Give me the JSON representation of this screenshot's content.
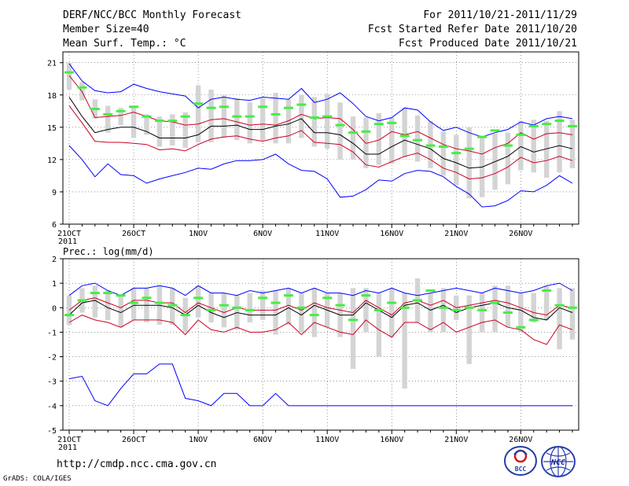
{
  "header": {
    "title": "DERF/NCC/BCC Monthly Forecast",
    "member_size": "Member Size=40",
    "variable": "Mean Surf. Temp.: °C",
    "period": "For 2011/10/21-2011/11/29",
    "start_date": "Fcst Started Refer Date 2011/10/20",
    "produced_date": "Fcst Produced Date 2011/10/21"
  },
  "footer": {
    "url": "http://cmdp.ncc.cma.gov.cn",
    "credit": "GrADS: COLA/IGES"
  },
  "logos": [
    {
      "name": "bcc-logo",
      "text": "BCC"
    },
    {
      "name": "ncc-logo",
      "text": "NCC"
    }
  ],
  "colors": {
    "envelope": "#0000ff",
    "spread": "#cc0022",
    "mean": "#000000",
    "ensemble_box": "#d4d4d4",
    "observation": "#44ee44"
  },
  "chart_data": [
    {
      "type": "line",
      "title": "Mean Surf. Temp.: °C",
      "x_tick_labels": [
        "21OCT",
        "26OCT",
        "1NOV",
        "6NOV",
        "11NOV",
        "16NOV",
        "21NOV",
        "26NOV"
      ],
      "x_tick_days": [
        1,
        6,
        11,
        16,
        21,
        26,
        31,
        36
      ],
      "year_label": "2011",
      "x_range": [
        1,
        40
      ],
      "ylim": [
        6,
        22
      ],
      "y_ticks": [
        6,
        9,
        12,
        15,
        18,
        21
      ],
      "grid": true,
      "series": [
        {
          "name": "max",
          "color": "#0000ff",
          "values": [
            20.9,
            19.3,
            18.4,
            18.2,
            18.3,
            19.0,
            18.6,
            18.3,
            18.1,
            17.9,
            16.8,
            17.6,
            17.8,
            17.6,
            17.5,
            17.8,
            17.7,
            17.6,
            18.6,
            17.3,
            17.6,
            18.2,
            17.2,
            16.0,
            15.6,
            15.9,
            16.8,
            16.6,
            15.5,
            14.7,
            15.0,
            14.5,
            14.1,
            14.5,
            14.8,
            15.5,
            15.2,
            15.8,
            16.0,
            15.8
          ]
        },
        {
          "name": "upper",
          "color": "#cc0022",
          "values": [
            19.8,
            18.3,
            15.9,
            16.0,
            16.1,
            16.4,
            16.0,
            15.6,
            15.5,
            15.2,
            15.3,
            15.7,
            15.8,
            15.5,
            15.2,
            15.3,
            15.2,
            15.6,
            16.2,
            15.8,
            15.9,
            15.8,
            14.8,
            13.5,
            13.8,
            14.6,
            14.3,
            14.6,
            14.0,
            13.4,
            13.0,
            12.8,
            12.5,
            13.1,
            13.5,
            14.5,
            13.9,
            14.4,
            14.5,
            14.3
          ]
        },
        {
          "name": "mean",
          "color": "#000000",
          "values": [
            17.8,
            16.0,
            14.5,
            14.8,
            15.0,
            15.0,
            14.6,
            14.0,
            14.0,
            14.0,
            14.3,
            15.1,
            15.1,
            15.2,
            14.8,
            14.8,
            15.1,
            15.3,
            15.8,
            14.5,
            14.5,
            14.3,
            13.5,
            12.5,
            12.5,
            13.2,
            13.8,
            13.4,
            13.0,
            12.1,
            11.7,
            11.2,
            11.3,
            11.8,
            12.3,
            13.2,
            12.7,
            13.0,
            13.3,
            13.0
          ]
        },
        {
          "name": "lower",
          "color": "#cc0022",
          "values": [
            17.0,
            15.4,
            13.7,
            13.6,
            13.6,
            13.5,
            13.4,
            12.9,
            13.0,
            12.8,
            13.4,
            13.9,
            14.1,
            14.2,
            13.9,
            13.7,
            14.0,
            14.2,
            14.7,
            13.6,
            13.5,
            13.4,
            12.7,
            11.5,
            11.3,
            11.8,
            12.3,
            12.6,
            12.0,
            11.2,
            10.8,
            10.2,
            10.3,
            10.7,
            11.3,
            12.2,
            11.7,
            11.9,
            12.3,
            11.9
          ]
        },
        {
          "name": "min",
          "color": "#0000ff",
          "values": [
            13.3,
            12.0,
            10.4,
            11.6,
            10.6,
            10.5,
            9.8,
            10.2,
            10.5,
            10.8,
            11.2,
            11.1,
            11.6,
            11.9,
            11.9,
            12.0,
            12.5,
            11.6,
            11.0,
            10.9,
            10.2,
            8.5,
            8.6,
            9.2,
            10.1,
            10.0,
            10.7,
            11.0,
            10.9,
            10.4,
            9.5,
            8.8,
            7.6,
            7.7,
            8.2,
            9.1,
            9.0,
            9.6,
            10.5,
            9.8
          ]
        },
        {
          "name": "observation",
          "color": "#44ee44",
          "values": [
            20.1,
            18.7,
            16.7,
            16.2,
            16.5,
            16.9,
            16.0,
            15.6,
            15.6,
            16.0,
            17.2,
            16.8,
            16.9,
            16.0,
            16.0,
            16.9,
            16.2,
            16.8,
            17.1,
            15.9,
            16.0,
            15.2,
            14.5,
            14.6,
            15.3,
            15.4,
            14.2,
            13.8,
            13.3,
            13.2,
            12.6,
            13.0,
            14.1,
            14.7,
            13.3,
            14.3,
            15.1,
            15.3,
            15.6,
            15.1
          ]
        }
      ],
      "box_values": [
        [
          18.5,
          21.0
        ],
        [
          17.5,
          19.2
        ],
        [
          15.8,
          17.6
        ],
        [
          14.5,
          17.0
        ],
        [
          15.2,
          16.8
        ],
        [
          14.0,
          16.9
        ],
        [
          14.3,
          16.2
        ],
        [
          13.2,
          16.0
        ],
        [
          13.3,
          16.2
        ],
        [
          13.1,
          16.4
        ],
        [
          13.6,
          18.9
        ],
        [
          13.6,
          18.5
        ],
        [
          14.0,
          18.0
        ],
        [
          13.8,
          17.7
        ],
        [
          13.5,
          17.3
        ],
        [
          13.8,
          17.7
        ],
        [
          13.5,
          18.2
        ],
        [
          13.5,
          17.6
        ],
        [
          14.0,
          18.0
        ],
        [
          13.2,
          17.8
        ],
        [
          13.0,
          18.1
        ],
        [
          12.0,
          17.3
        ],
        [
          12.0,
          16.0
        ],
        [
          11.2,
          15.9
        ],
        [
          11.5,
          16.3
        ],
        [
          11.6,
          15.9
        ],
        [
          12.2,
          16.8
        ],
        [
          11.8,
          16.1
        ],
        [
          11.2,
          15.6
        ],
        [
          10.5,
          14.6
        ],
        [
          9.6,
          14.3
        ],
        [
          8.4,
          15.0
        ],
        [
          8.5,
          14.2
        ],
        [
          9.2,
          14.4
        ],
        [
          9.7,
          14.5
        ],
        [
          11.0,
          15.6
        ],
        [
          10.8,
          15.7
        ],
        [
          10.3,
          15.6
        ],
        [
          10.8,
          16.5
        ],
        [
          11.2,
          15.7
        ]
      ]
    },
    {
      "type": "line",
      "title": "Prec.: log(mm/d)",
      "x_tick_labels": [
        "21OCT",
        "26OCT",
        "1NOV",
        "6NOV",
        "11NOV",
        "16NOV",
        "21NOV",
        "26NOV"
      ],
      "x_tick_days": [
        1,
        6,
        11,
        16,
        21,
        26,
        31,
        36
      ],
      "year_label": "2011",
      "x_range": [
        1,
        40
      ],
      "ylim": [
        -5,
        2
      ],
      "y_ticks": [
        -5,
        -4,
        -3,
        -2,
        -1,
        0,
        1,
        2
      ],
      "grid": true,
      "series": [
        {
          "name": "max",
          "color": "#0000ff",
          "values": [
            0.5,
            0.9,
            1.0,
            0.7,
            0.5,
            0.8,
            0.8,
            0.9,
            0.8,
            0.5,
            0.9,
            0.6,
            0.6,
            0.5,
            0.7,
            0.6,
            0.7,
            0.8,
            0.6,
            0.8,
            0.6,
            0.6,
            0.5,
            0.7,
            0.6,
            0.8,
            0.6,
            0.5,
            0.6,
            0.7,
            0.8,
            0.7,
            0.6,
            0.8,
            0.7,
            0.6,
            0.7,
            0.9,
            1.0,
            0.7
          ]
        },
        {
          "name": "upper",
          "color": "#cc0022",
          "values": [
            -0.1,
            0.3,
            0.4,
            0.2,
            0.0,
            0.3,
            0.3,
            0.2,
            0.2,
            -0.2,
            0.2,
            0.0,
            -0.2,
            0.0,
            -0.1,
            -0.1,
            -0.1,
            0.1,
            -0.1,
            0.2,
            0.0,
            -0.1,
            -0.2,
            0.3,
            0.0,
            -0.3,
            0.2,
            0.3,
            0.1,
            0.3,
            0.0,
            0.1,
            0.2,
            0.3,
            0.2,
            0.0,
            -0.2,
            -0.3,
            0.1,
            0.0
          ]
        },
        {
          "name": "mean",
          "color": "#000000",
          "values": [
            -0.3,
            0.2,
            0.3,
            0.0,
            -0.2,
            0.1,
            0.1,
            0.1,
            0.0,
            -0.3,
            0.1,
            -0.2,
            -0.4,
            -0.2,
            -0.3,
            -0.3,
            -0.3,
            0.0,
            -0.3,
            0.1,
            -0.1,
            -0.3,
            -0.3,
            0.2,
            -0.1,
            -0.4,
            0.1,
            0.2,
            -0.1,
            0.1,
            -0.2,
            0.0,
            0.1,
            0.2,
            0.0,
            -0.1,
            -0.4,
            -0.5,
            0.0,
            -0.2
          ]
        },
        {
          "name": "lower",
          "color": "#cc0022",
          "values": [
            -0.6,
            -0.3,
            -0.5,
            -0.6,
            -0.8,
            -0.5,
            -0.5,
            -0.5,
            -0.6,
            -1.1,
            -0.5,
            -0.9,
            -1.0,
            -0.8,
            -1.0,
            -1.0,
            -0.9,
            -0.6,
            -1.1,
            -0.6,
            -0.8,
            -1.0,
            -1.1,
            -0.5,
            -0.9,
            -1.2,
            -0.6,
            -0.6,
            -0.9,
            -0.6,
            -1.0,
            -0.8,
            -0.6,
            -0.5,
            -0.8,
            -0.9,
            -1.3,
            -1.5,
            -0.7,
            -0.9
          ]
        },
        {
          "name": "min",
          "color": "#0000ff",
          "values": [
            -2.9,
            -2.8,
            -3.8,
            -4.0,
            -3.3,
            -2.7,
            -2.7,
            -2.3,
            -2.3,
            -3.7,
            -3.8,
            -4.0,
            -3.5,
            -3.5,
            -4.0,
            -4.0,
            -3.5,
            -4.0,
            -4.0,
            -4.0,
            -4.0,
            -4.0,
            -4.0,
            -4.0,
            -4.0,
            -4.0,
            -4.0,
            -4.0,
            -4.0,
            -4.0,
            -4.0,
            -4.0,
            -4.0,
            -4.0,
            -4.0,
            -4.0,
            -4.0,
            -4.0,
            -4.0,
            -4.0
          ]
        },
        {
          "name": "observation",
          "color": "#44ee44",
          "values": [
            -0.3,
            0.3,
            0.6,
            0.6,
            0.5,
            0.2,
            0.4,
            0.2,
            0.1,
            -0.3,
            0.4,
            -0.1,
            0.1,
            0.0,
            -0.1,
            0.4,
            0.2,
            0.5,
            0.0,
            -0.3,
            0.4,
            0.1,
            -0.5,
            0.5,
            -0.1,
            0.2,
            0.0,
            0.3,
            0.7,
            0.0,
            -0.1,
            0.0,
            -0.1,
            0.2,
            -0.2,
            -0.8,
            -0.5,
            0.7,
            0.1,
            0.0
          ]
        }
      ],
      "box_values": [
        [
          -0.7,
          0.5
        ],
        [
          -0.2,
          0.8
        ],
        [
          -0.4,
          0.9
        ],
        [
          -0.5,
          0.7
        ],
        [
          -0.8,
          0.5
        ],
        [
          -0.5,
          0.8
        ],
        [
          -0.6,
          0.8
        ],
        [
          -0.7,
          0.9
        ],
        [
          -0.7,
          0.8
        ],
        [
          -1.0,
          0.4
        ],
        [
          -0.4,
          0.9
        ],
        [
          -0.6,
          0.6
        ],
        [
          -0.8,
          0.6
        ],
        [
          -0.9,
          0.5
        ],
        [
          -0.6,
          0.6
        ],
        [
          -0.5,
          0.7
        ],
        [
          -1.1,
          0.7
        ],
        [
          -0.7,
          0.8
        ],
        [
          -1.0,
          0.6
        ],
        [
          -1.2,
          0.8
        ],
        [
          -0.8,
          0.6
        ],
        [
          -1.2,
          0.6
        ],
        [
          -2.5,
          0.8
        ],
        [
          -1.0,
          0.8
        ],
        [
          -2.0,
          0.6
        ],
        [
          -1.2,
          0.8
        ],
        [
          -3.3,
          0.6
        ],
        [
          -0.6,
          1.2
        ],
        [
          -1.0,
          0.6
        ],
        [
          -1.0,
          0.8
        ],
        [
          -0.5,
          0.5
        ],
        [
          -2.3,
          0.5
        ],
        [
          -1.0,
          0.6
        ],
        [
          -1.0,
          0.9
        ],
        [
          -0.8,
          0.9
        ],
        [
          -1.0,
          0.6
        ],
        [
          -0.6,
          0.6
        ],
        [
          -0.5,
          0.9
        ],
        [
          -1.7,
          0.8
        ],
        [
          -1.3,
          0.8
        ]
      ]
    }
  ]
}
